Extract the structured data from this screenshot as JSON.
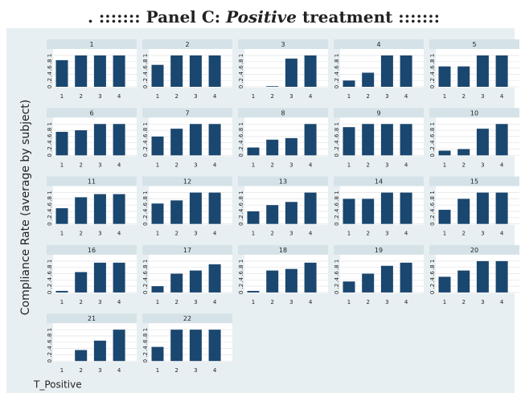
{
  "chart_data": {
    "type": "bar",
    "title_prefix": ". ::::::: Panel C: ",
    "title_emphasis": "Positive",
    "title_suffix": " treatment :::::::",
    "ylabel": "Compliance Rate (average by subject)",
    "note": "T_Positive",
    "color": "#1a476f",
    "grid": true,
    "categories": [
      "1",
      "2",
      "3",
      "4"
    ],
    "ylim": [
      0,
      1
    ],
    "yticks": [
      0,
      {
        "value": 0.2,
        "label": ".2"
      },
      {
        "value": 0.4,
        "label": ".4"
      },
      {
        "value": 0.6,
        "label": ".6"
      },
      {
        "value": 0.8,
        "label": ".8"
      },
      1
    ],
    "panels": [
      {
        "title": "1",
        "values": [
          0.85,
          1,
          1,
          1
        ]
      },
      {
        "title": "2",
        "values": [
          0.7,
          1,
          1,
          1
        ]
      },
      {
        "title": "3",
        "values": [
          0,
          0.02,
          0.9,
          1
        ]
      },
      {
        "title": "4",
        "values": [
          0.2,
          0.45,
          1,
          1
        ]
      },
      {
        "title": "5",
        "values": [
          0.65,
          0.65,
          1,
          1
        ]
      },
      {
        "title": "6",
        "values": [
          0.75,
          0.8,
          1,
          1
        ]
      },
      {
        "title": "7",
        "values": [
          0.6,
          0.85,
          1,
          1
        ]
      },
      {
        "title": "8",
        "values": [
          0.25,
          0.5,
          0.55,
          1
        ]
      },
      {
        "title": "9",
        "values": [
          0.9,
          1,
          1,
          1
        ]
      },
      {
        "title": "10",
        "values": [
          0.15,
          0.2,
          0.85,
          1
        ]
      },
      {
        "title": "11",
        "values": [
          0.5,
          0.85,
          0.95,
          0.95
        ]
      },
      {
        "title": "12",
        "values": [
          0.65,
          0.75,
          1,
          1
        ]
      },
      {
        "title": "13",
        "values": [
          0.4,
          0.6,
          0.7,
          1
        ]
      },
      {
        "title": "14",
        "values": [
          0.8,
          0.8,
          1,
          1
        ]
      },
      {
        "title": "15",
        "values": [
          0.45,
          0.8,
          1,
          1
        ]
      },
      {
        "title": "16",
        "values": [
          0.05,
          0.65,
          0.95,
          0.95
        ]
      },
      {
        "title": "17",
        "values": [
          0.2,
          0.6,
          0.7,
          0.9
        ]
      },
      {
        "title": "18",
        "values": [
          0.05,
          0.7,
          0.75,
          0.95
        ]
      },
      {
        "title": "19",
        "values": [
          0.35,
          0.6,
          0.85,
          0.95
        ]
      },
      {
        "title": "20",
        "values": [
          0.5,
          0.7,
          1,
          1
        ]
      },
      {
        "title": "21",
        "values": [
          0,
          0.35,
          0.65,
          1
        ]
      },
      {
        "title": "22",
        "values": [
          0.45,
          1,
          1,
          1
        ]
      }
    ]
  }
}
